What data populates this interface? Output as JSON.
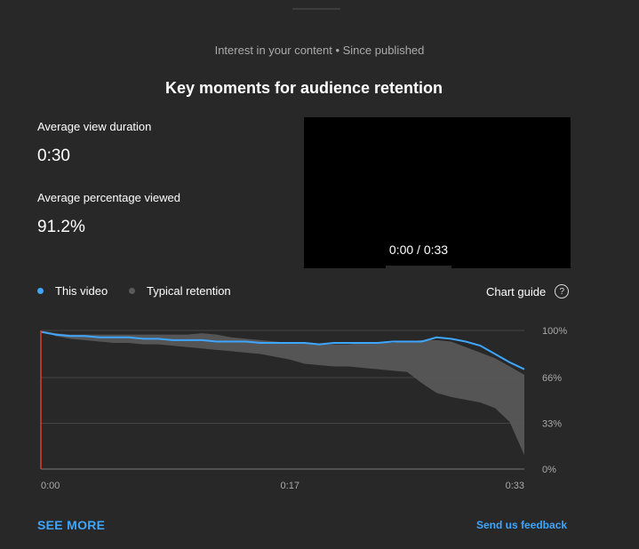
{
  "header": {
    "subtitle": "Interest in your content • Since published",
    "title": "Key moments for audience retention"
  },
  "metrics": [
    {
      "label": "Average view duration",
      "value": "0:30"
    },
    {
      "label": "Average percentage viewed",
      "value": "91.2%"
    }
  ],
  "player": {
    "time_readout": "0:00 / 0:33"
  },
  "legend": {
    "this_video": "This video",
    "typical": "Typical retention",
    "chart_guide": "Chart guide",
    "this_video_color": "#3ea6ff",
    "typical_color": "#5a5a5a"
  },
  "chart_data": {
    "type": "line",
    "x_ticks": [
      "0:00",
      "0:17",
      "0:33"
    ],
    "y_ticks": [
      "100%",
      "66%",
      "33%",
      "0%"
    ],
    "ylim": [
      0,
      100
    ],
    "xlim": [
      0,
      33
    ],
    "grid": true,
    "series": [
      {
        "name": "This video",
        "color": "#3ea6ff",
        "x": [
          0,
          0.5,
          1,
          2,
          3,
          4,
          5,
          6,
          7,
          8,
          9,
          10,
          11,
          12,
          13,
          14,
          15,
          16,
          17,
          18,
          19,
          20,
          21,
          22,
          23,
          24,
          25,
          26,
          27,
          28,
          29,
          30,
          31,
          32,
          33
        ],
        "y": [
          99,
          98,
          97,
          96,
          96,
          95,
          95,
          95,
          94,
          94,
          93,
          93,
          93,
          92,
          92,
          92,
          91,
          91,
          91,
          91,
          90,
          91,
          91,
          91,
          91,
          92,
          92,
          92,
          95,
          94,
          92,
          89,
          83,
          77,
          72
        ]
      },
      {
        "name": "Typical retention",
        "color": "#5a5a5a",
        "x": [
          0,
          1,
          2,
          3,
          4,
          5,
          6,
          7,
          8,
          9,
          10,
          11,
          12,
          13,
          14,
          15,
          16,
          17,
          18,
          19,
          20,
          21,
          22,
          23,
          24,
          25,
          26,
          27,
          28,
          29,
          30,
          31,
          32,
          33
        ],
        "upper": [
          100,
          98,
          97,
          97,
          97,
          97,
          97,
          97,
          97,
          97,
          97,
          98,
          97,
          95,
          94,
          93,
          92,
          91,
          91,
          90,
          90,
          90,
          91,
          91,
          91,
          92,
          93,
          93,
          92,
          88,
          84,
          80,
          74,
          68
        ],
        "lower": [
          100,
          96,
          94,
          93,
          92,
          91,
          91,
          90,
          90,
          89,
          88,
          87,
          86,
          85,
          84,
          83,
          81,
          79,
          76,
          75,
          74,
          74,
          73,
          72,
          71,
          70,
          62,
          55,
          52,
          50,
          48,
          44,
          34,
          10
        ]
      }
    ]
  },
  "footer": {
    "see_more": "SEE MORE",
    "feedback": "Send us feedback"
  }
}
